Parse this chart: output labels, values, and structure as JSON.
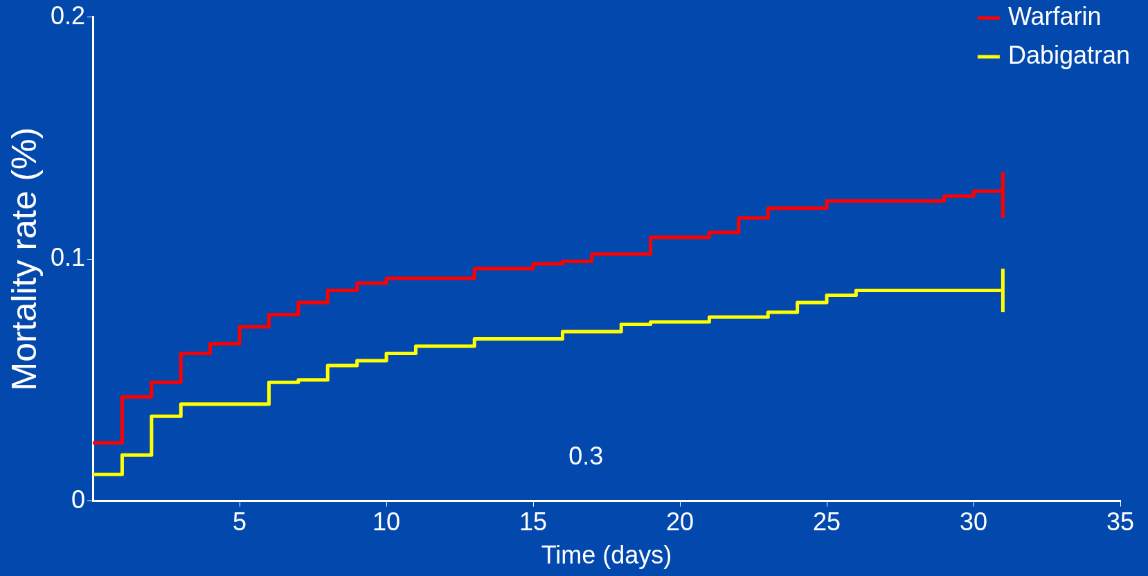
{
  "chart_data": {
    "type": "step",
    "xlabel": "Time (days)",
    "ylabel": "Mortality rate (%)",
    "xlim": [
      0,
      35
    ],
    "xticks": [
      5,
      10,
      15,
      20,
      25,
      30,
      35
    ],
    "ylim": [
      0,
      0.2
    ],
    "yticks": [
      0,
      0.1,
      0.2
    ],
    "grid": false,
    "legend": "top right",
    "marker": "none",
    "line_style": "solid",
    "annotations": [
      "0.3"
    ],
    "series": [
      {
        "name": "Warfarin",
        "color": "#ff0000",
        "x": [
          0,
          1,
          2,
          3,
          4,
          5,
          6,
          7,
          8,
          9,
          10,
          13,
          15,
          16,
          17,
          19,
          21,
          22,
          23,
          25,
          29,
          30,
          31
        ],
        "values": [
          0.024,
          0.043,
          0.049,
          0.061,
          0.065,
          0.072,
          0.077,
          0.082,
          0.087,
          0.09,
          0.092,
          0.096,
          0.098,
          0.099,
          0.102,
          0.109,
          0.111,
          0.117,
          0.121,
          0.124,
          0.126,
          0.128,
          0.128
        ],
        "errors": [
          null,
          null,
          null,
          null,
          null,
          null,
          null,
          null,
          null,
          null,
          null,
          null,
          null,
          null,
          null,
          null,
          null,
          null,
          null,
          null,
          null,
          null,
          [
            0.117,
            0.136
          ]
        ]
      },
      {
        "name": "Dabigatran",
        "color": "#ffff00",
        "x": [
          0,
          1,
          2,
          3,
          6,
          7,
          8,
          9,
          10,
          11,
          13,
          16,
          18,
          19,
          21,
          23,
          24,
          25,
          26,
          31
        ],
        "values": [
          0.011,
          0.019,
          0.035,
          0.04,
          0.049,
          0.05,
          0.056,
          0.058,
          0.061,
          0.064,
          0.067,
          0.07,
          0.073,
          0.074,
          0.076,
          0.078,
          0.082,
          0.085,
          0.087,
          0.087
        ],
        "errors": [
          null,
          null,
          null,
          null,
          null,
          null,
          null,
          null,
          null,
          null,
          null,
          null,
          null,
          null,
          null,
          null,
          null,
          null,
          null,
          [
            0.078,
            0.096
          ]
        ]
      }
    ]
  }
}
